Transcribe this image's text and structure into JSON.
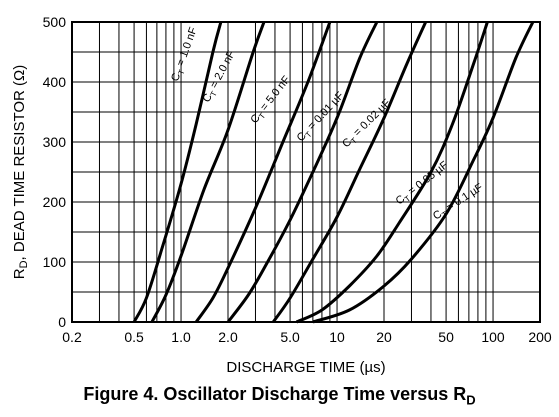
{
  "chart_data": {
    "type": "line",
    "xlabel": "DISCHARGE TIME (µs)",
    "ylabel_main": "R",
    "ylabel_sub": "D",
    "ylabel_rest": ", DEAD TIME RESISTOR (Ω)",
    "x_scale": "log",
    "xlim": [
      0.2,
      200
    ],
    "ylim": [
      0,
      500
    ],
    "x_tick_labels": [
      "0.2",
      "0.5",
      "1.0",
      "2.0",
      "5.0",
      "10",
      "20",
      "50",
      "100",
      "200"
    ],
    "x_tick_values": [
      0.2,
      0.5,
      1,
      2,
      5,
      10,
      20,
      50,
      100,
      200
    ],
    "y_tick_labels": [
      "0",
      "100",
      "200",
      "300",
      "400",
      "500"
    ],
    "y_tick_values": [
      0,
      100,
      200,
      300,
      400,
      500
    ],
    "grid": true,
    "series": [
      {
        "name": "1.0 nF",
        "points": [
          [
            0.5,
            0
          ],
          [
            0.6,
            40
          ],
          [
            0.75,
            120
          ],
          [
            1.0,
            230
          ],
          [
            1.25,
            330
          ],
          [
            1.6,
            450
          ],
          [
            1.8,
            500
          ]
        ]
      },
      {
        "name": "2.0 nF",
        "points": [
          [
            0.65,
            0
          ],
          [
            0.8,
            45
          ],
          [
            1.0,
            110
          ],
          [
            1.4,
            220
          ],
          [
            2.0,
            320
          ],
          [
            2.9,
            450
          ],
          [
            3.4,
            500
          ]
        ]
      },
      {
        "name": "5.0 nF",
        "points": [
          [
            1.25,
            0
          ],
          [
            1.6,
            40
          ],
          [
            2.0,
            90
          ],
          [
            3.0,
            190
          ],
          [
            4.5,
            300
          ],
          [
            6.5,
            400
          ],
          [
            9.0,
            500
          ]
        ]
      },
      {
        "name": "0.01 µF",
        "points": [
          [
            2.0,
            0
          ],
          [
            2.7,
            45
          ],
          [
            3.5,
            95
          ],
          [
            5.0,
            170
          ],
          [
            7.0,
            250
          ],
          [
            10,
            340
          ],
          [
            14,
            440
          ],
          [
            18,
            500
          ]
        ]
      },
      {
        "name": "0.02 µF",
        "points": [
          [
            3.9,
            0
          ],
          [
            5.0,
            40
          ],
          [
            7.0,
            105
          ],
          [
            10,
            175
          ],
          [
            14,
            255
          ],
          [
            20,
            340
          ],
          [
            28,
            430
          ],
          [
            37,
            500
          ]
        ]
      },
      {
        "name": "0.05 µF",
        "points": [
          [
            5.5,
            0
          ],
          [
            8.0,
            20
          ],
          [
            12,
            60
          ],
          [
            18,
            110
          ],
          [
            25,
            165
          ],
          [
            40,
            250
          ],
          [
            55,
            330
          ],
          [
            75,
            430
          ],
          [
            92,
            500
          ]
        ]
      },
      {
        "name": "0.1 µF",
        "points": [
          [
            7.0,
            0
          ],
          [
            12,
            20
          ],
          [
            20,
            60
          ],
          [
            30,
            105
          ],
          [
            50,
            180
          ],
          [
            75,
            270
          ],
          [
            100,
            340
          ],
          [
            140,
            440
          ],
          [
            180,
            500
          ]
        ]
      }
    ],
    "curve_labels": [
      "C",
      "T",
      " = 1.0 nF",
      " = 2.0 nF",
      " = 5.0 nF",
      " = 0.01 µF",
      " = 0.02 µF",
      " = 0.05 µF",
      " = 0.1 µF"
    ]
  },
  "caption": {
    "main": "Figure 4. Oscillator Discharge Time versus R",
    "sub": "D"
  }
}
